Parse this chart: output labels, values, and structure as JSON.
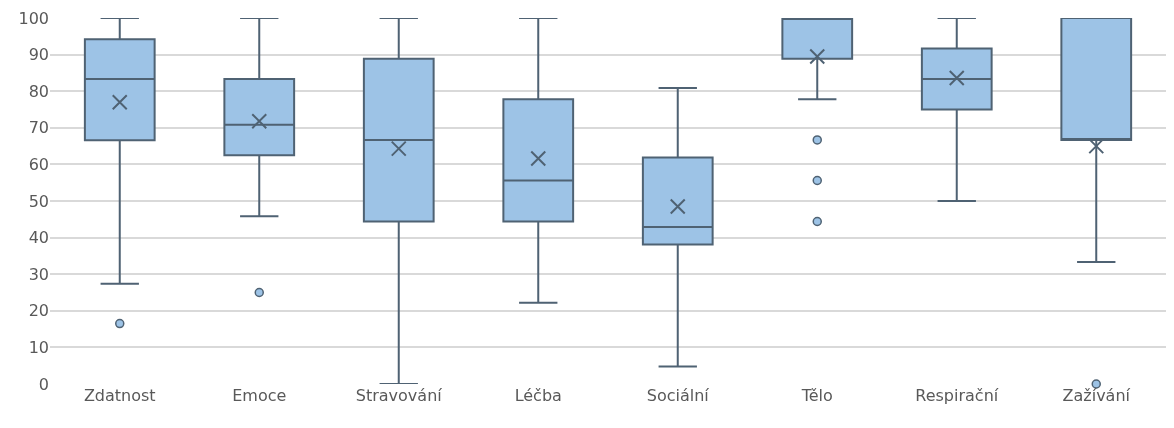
{
  "chart_data": {
    "type": "box",
    "categories": [
      "Zdatnost",
      "Emoce",
      "Stravování",
      "Léčba",
      "Sociální",
      "Tělo",
      "Respirační",
      "Zažívání"
    ],
    "series": [
      {
        "color": "#9dc3e6",
        "boxes": [
          {
            "low": 27.4,
            "q1": 66.6,
            "median": 83.3,
            "q3": 94.2,
            "high": 100,
            "mean": 77,
            "outliers": [
              16.5
            ]
          },
          {
            "low": 45.8,
            "q1": 62.5,
            "median": 70.8,
            "q3": 83.3,
            "high": 100,
            "mean": 71.8,
            "outliers": [
              25
            ]
          },
          {
            "low": 0,
            "q1": 44.4,
            "median": 66.7,
            "q3": 88.9,
            "high": 100,
            "mean": 64.3
          },
          {
            "low": 22.2,
            "q1": 44.4,
            "median": 55.6,
            "q3": 77.8,
            "high": 100,
            "mean": 61.6
          },
          {
            "low": 4.8,
            "q1": 38.1,
            "median": 42.9,
            "q3": 61.9,
            "high": 80.9,
            "mean": 48.5
          },
          {
            "low": 77.8,
            "q1": 88.9,
            "median": 100,
            "q3": 100,
            "high": 100,
            "mean": 89.5,
            "outliers": [
              66.7,
              55.6,
              44.4
            ]
          },
          {
            "low": 50,
            "q1": 75,
            "median": 83.3,
            "q3": 91.7,
            "high": 100,
            "mean": 83.6
          },
          {
            "low": 33.3,
            "q1": 66.7,
            "median": 66.7,
            "q3": 100,
            "high": 100,
            "mean": 65,
            "outliers": [
              0
            ]
          }
        ]
      }
    ],
    "ylim": [
      0,
      100
    ],
    "yticks": [
      0,
      10,
      20,
      30,
      40,
      50,
      60,
      70,
      80,
      90,
      100
    ],
    "grid": "y",
    "marker": "circle"
  }
}
